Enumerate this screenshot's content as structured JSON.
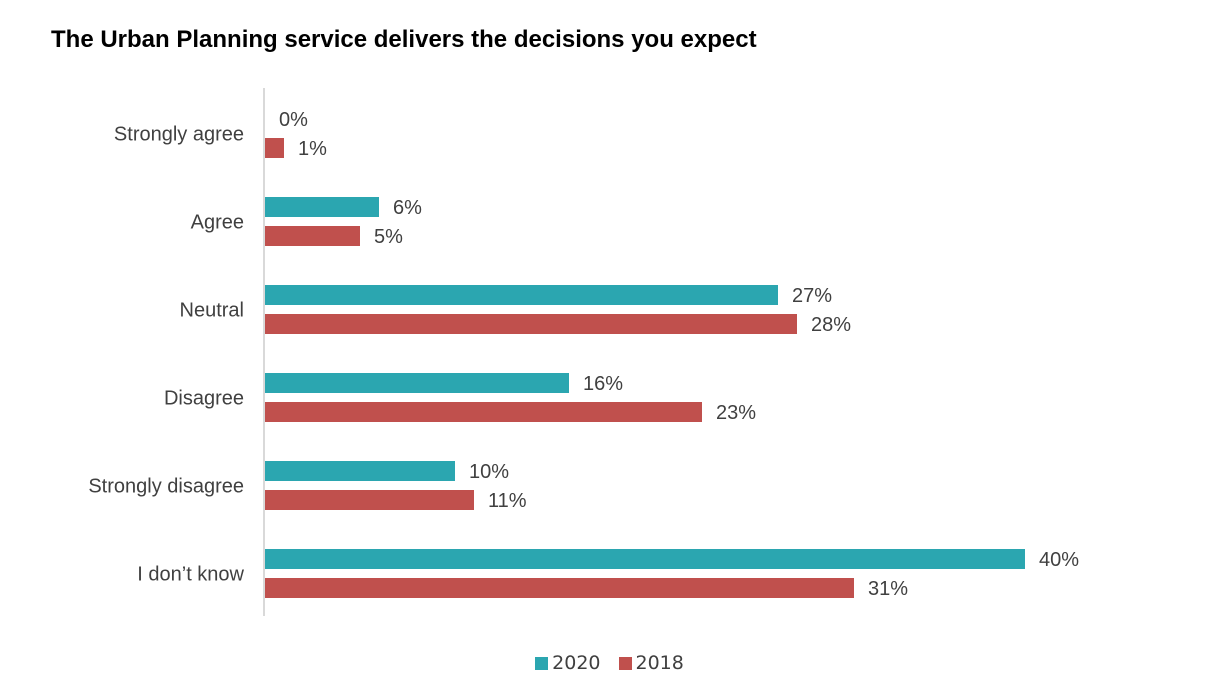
{
  "chart_data": {
    "type": "bar",
    "orientation": "horizontal",
    "title": "The Urban Planning service delivers the decisions you expect",
    "xlabel": "",
    "ylabel": "",
    "categories": [
      "Strongly agree",
      "Agree",
      "Neutral",
      "Disagree",
      "Strongly disagree",
      "I don’t know"
    ],
    "series": [
      {
        "name": "2020",
        "color": "#2ba6b0",
        "values": [
          0,
          6,
          27,
          16,
          10,
          40
        ],
        "labels": [
          "0%",
          "6%",
          "27%",
          "16%",
          "10%",
          "40%"
        ]
      },
      {
        "name": "2018",
        "color": "#c0504d",
        "values": [
          1,
          5,
          28,
          23,
          11,
          31
        ],
        "labels": [
          "1%",
          "5%",
          "28%",
          "23%",
          "11%",
          "31%"
        ]
      }
    ],
    "xlim": [
      0,
      40
    ],
    "unit": "%",
    "grid": false,
    "legend": "bottom-center"
  }
}
